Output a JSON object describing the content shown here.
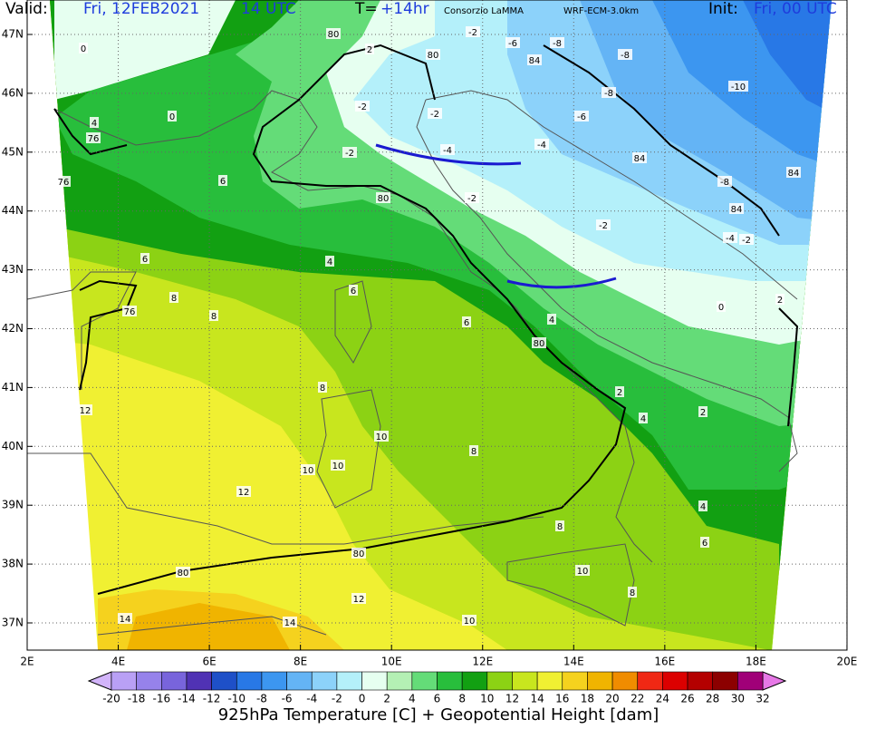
{
  "header": {
    "valid_label": "Valid:",
    "valid_date": "Fri, 12FEB2021",
    "valid_time": "14 UTC",
    "lead_label": "T=",
    "lead_value": "+14hr",
    "source": "Consorzio LaMMA",
    "model": "WRF-ECM-3.0km",
    "init_label": "Init:",
    "init_value": "Fri, 00 UTC"
  },
  "map": {
    "lat_labels": [
      "47N",
      "46N",
      "45N",
      "44N",
      "43N",
      "42N",
      "41N",
      "40N",
      "39N",
      "38N",
      "37N"
    ],
    "lon_labels": [
      "2E",
      "4E",
      "6E",
      "8E",
      "10E",
      "12E",
      "14E",
      "16E",
      "18E",
      "20E"
    ],
    "contour_labels": [
      "0",
      "2",
      "80",
      "80",
      "-2",
      "-6",
      "-8",
      "-8",
      "84",
      "-10",
      "-8",
      "-6",
      "-2",
      "-2",
      "0",
      "4",
      "76",
      "-4",
      "-4",
      "-2",
      "84",
      "84",
      "-8",
      "76",
      "6",
      "-2",
      "80",
      "84",
      "-2",
      "-4",
      "-2",
      "6",
      "4",
      "0",
      "8",
      "76",
      "8",
      "6",
      "6",
      "4",
      "80",
      "8",
      "12",
      "2",
      "10",
      "8",
      "10",
      "10",
      "12",
      "4",
      "8",
      "6",
      "80",
      "80",
      "10",
      "8",
      "12",
      "14",
      "14",
      "10",
      "2",
      "2",
      "4"
    ]
  },
  "colorbar": {
    "ticks": [
      -20,
      -18,
      -16,
      -14,
      -12,
      -10,
      -8,
      -6,
      -4,
      -2,
      0,
      2,
      4,
      6,
      8,
      10,
      12,
      14,
      16,
      18,
      20,
      22,
      24,
      26,
      28,
      30,
      32
    ],
    "colors": [
      "#d2b4fa",
      "#b9a0f5",
      "#9682eb",
      "#7864dc",
      "#5032b4",
      "#1e50c8",
      "#2878e6",
      "#3c96f0",
      "#64b4f5",
      "#8cd2fa",
      "#b4f0fa",
      "#e6fff0",
      "#b4f0b4",
      "#64dc78",
      "#28be3c",
      "#12a012",
      "#8cd214",
      "#c8e61e",
      "#f0f032",
      "#f5d21e",
      "#f0b400",
      "#f08c00",
      "#f02814",
      "#dc0000",
      "#b40000",
      "#8c0000",
      "#a00078",
      "#e678e6"
    ]
  },
  "footer": "925hPa Temperature [C] + Geopotential Height [dam]"
}
